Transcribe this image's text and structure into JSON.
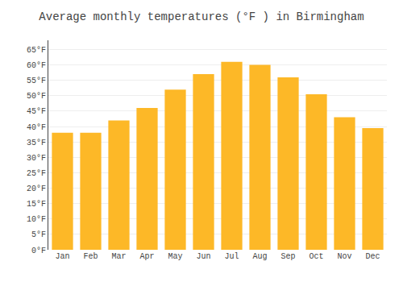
{
  "chart_data": {
    "type": "bar",
    "title": "Average monthly temperatures (°F ) in Birmingham",
    "categories": [
      "Jan",
      "Feb",
      "Mar",
      "Apr",
      "May",
      "Jun",
      "Jul",
      "Aug",
      "Sep",
      "Oct",
      "Nov",
      "Dec"
    ],
    "values": [
      38,
      38,
      42,
      46,
      52,
      57,
      61,
      60,
      56,
      50.5,
      43,
      39.5
    ],
    "color": "#FDB827",
    "ylim": [
      0,
      68
    ],
    "yticks": [
      {
        "value": 0,
        "label": "0°F"
      },
      {
        "value": 5,
        "label": "5°F"
      },
      {
        "value": 10,
        "label": "10°F"
      },
      {
        "value": 15,
        "label": "15°F"
      },
      {
        "value": 20,
        "label": "20°F"
      },
      {
        "value": 25,
        "label": "25°F"
      },
      {
        "value": 30,
        "label": "30°F"
      },
      {
        "value": 35,
        "label": "35°F"
      },
      {
        "value": 40,
        "label": "40°F"
      },
      {
        "value": 45,
        "label": "45°F"
      },
      {
        "value": 50,
        "label": "50°F"
      },
      {
        "value": 55,
        "label": "55°F"
      },
      {
        "value": 60,
        "label": "60°F"
      },
      {
        "value": 65,
        "label": "65°F"
      }
    ],
    "grid": true
  }
}
